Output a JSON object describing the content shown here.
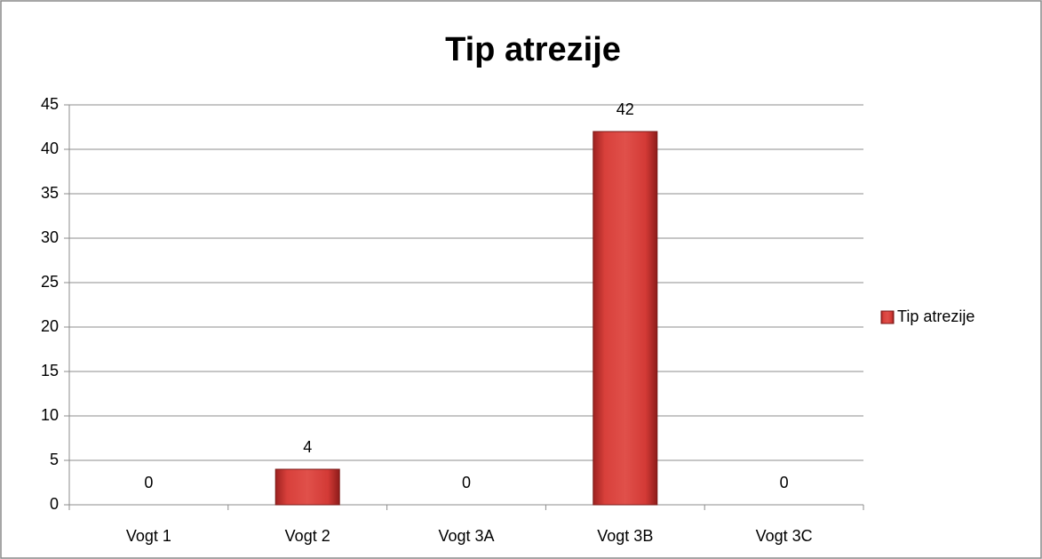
{
  "chart_data": {
    "type": "bar",
    "title": "Tip atrezije",
    "categories": [
      "Vogt 1",
      "Vogt 2",
      "Vogt 3A",
      "Vogt 3B",
      "Vogt 3C"
    ],
    "series": [
      {
        "name": "Tip atrezije",
        "color": "#d63c38",
        "values": [
          0,
          4,
          0,
          42,
          0
        ]
      }
    ],
    "ylim": [
      0,
      45
    ],
    "yticks": [
      0,
      5,
      10,
      15,
      20,
      25,
      30,
      35,
      40,
      45
    ],
    "grid": true,
    "legend": "right",
    "data_labels": true
  }
}
